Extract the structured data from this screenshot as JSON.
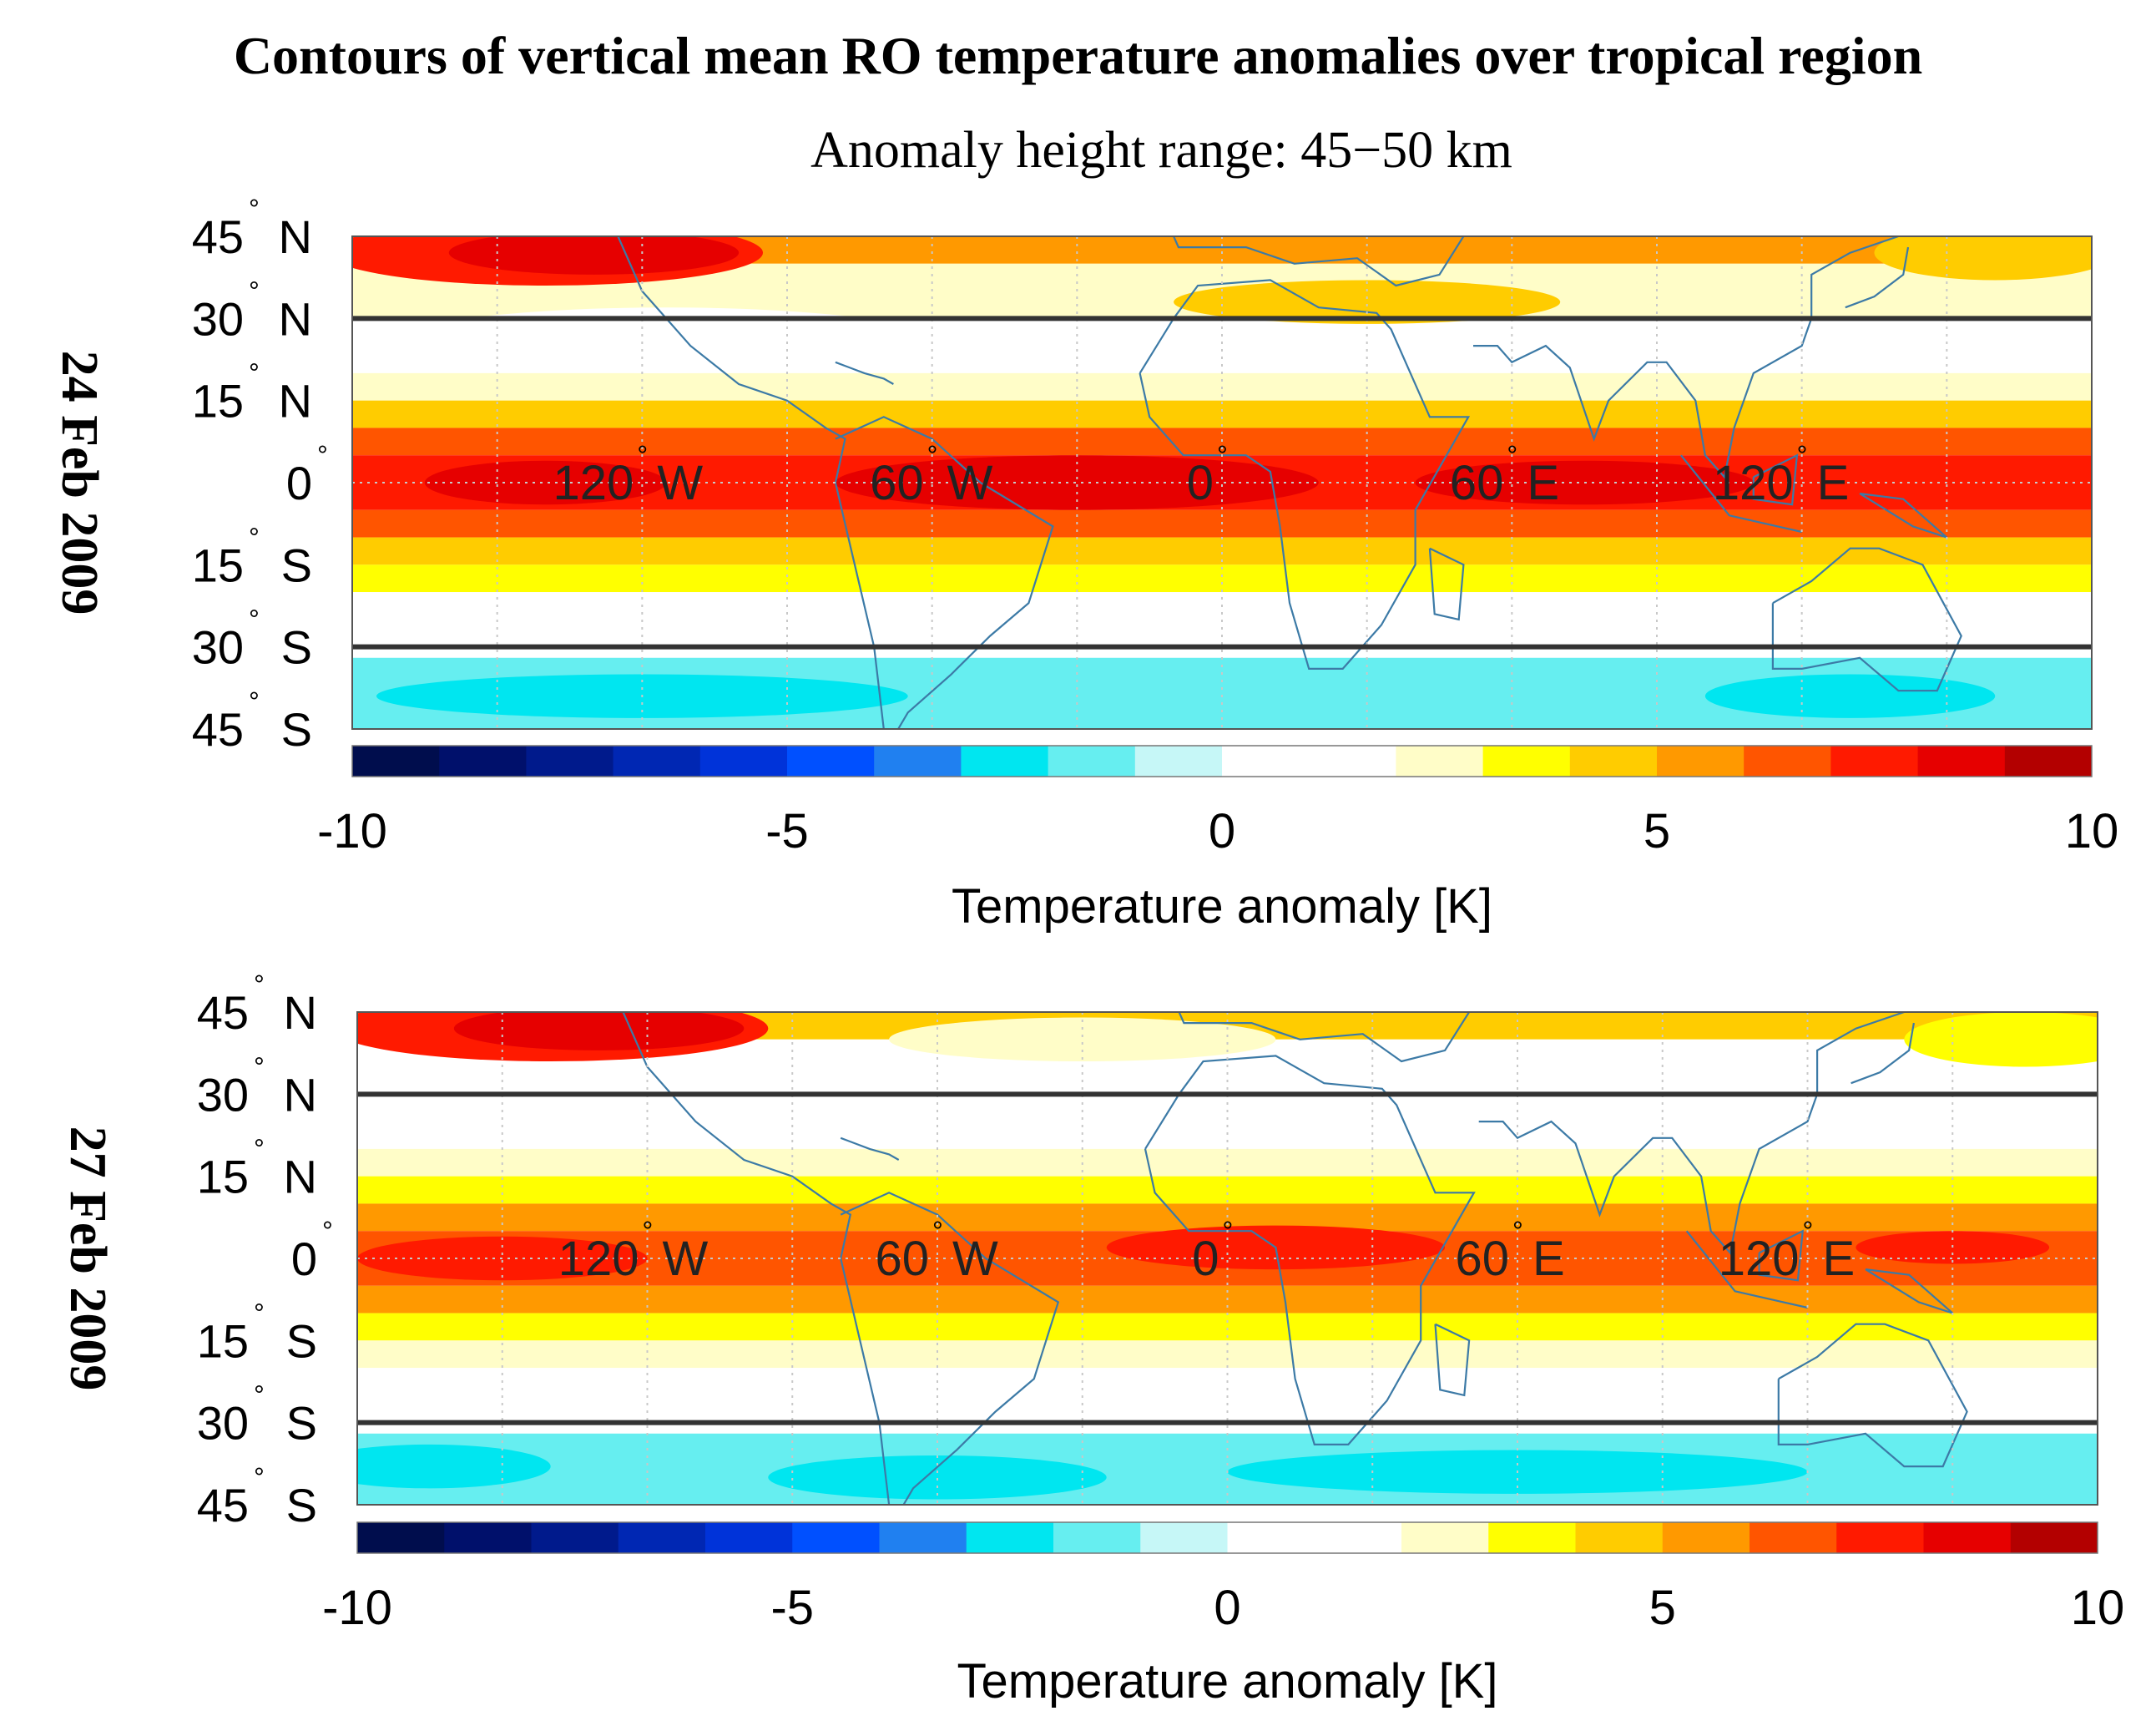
{
  "chart_data": [
    {
      "type": "heatmap",
      "panel": "24 Feb 2009",
      "title": "Contours of vertical mean RO temperature anomalies over tropical region",
      "subtitle": "Anomaly height range: 45−50 km",
      "date_label": "24 Feb 2009",
      "x_domain": [
        -180,
        180
      ],
      "y_domain": [
        -45,
        45
      ],
      "lat_labels": [
        "45",
        "30",
        "15",
        "0",
        "15",
        "30",
        "45"
      ],
      "lat_hemispheres": [
        "N",
        "N",
        "N",
        "",
        "S",
        "S",
        "S"
      ],
      "lon_labels": [
        {
          "lon": -120,
          "text": "120",
          "suffix": "W"
        },
        {
          "lon": -60,
          "text": "60",
          "suffix": "W"
        },
        {
          "lon": 0,
          "text": "0",
          "suffix": ""
        },
        {
          "lon": 60,
          "text": "60",
          "suffix": "E"
        },
        {
          "lon": 120,
          "text": "120",
          "suffix": "E"
        }
      ],
      "tropical_bounds_lat": [
        30,
        -30
      ],
      "colorbar": {
        "min": -10,
        "max": 10,
        "ticks": [
          "-10",
          "-5",
          "0",
          "5",
          "10"
        ],
        "label": "Temperature anomaly [K]"
      },
      "lat_bands": [
        {
          "lat": [
            45,
            40
          ],
          "value": 5.5
        },
        {
          "lat": [
            40,
            30
          ],
          "value": 2.5
        },
        {
          "lat": [
            30,
            20
          ],
          "value": 1.5
        },
        {
          "lat": [
            20,
            15
          ],
          "value": 2.5
        },
        {
          "lat": [
            15,
            10
          ],
          "value": 4.5
        },
        {
          "lat": [
            10,
            5
          ],
          "value": 6.5
        },
        {
          "lat": [
            5,
            -5
          ],
          "value": 7.5
        },
        {
          "lat": [
            -5,
            -10
          ],
          "value": 6.5
        },
        {
          "lat": [
            -10,
            -15
          ],
          "value": 4.5
        },
        {
          "lat": [
            -15,
            -20
          ],
          "value": 3.5
        },
        {
          "lat": [
            -20,
            -25
          ],
          "value": 1.5
        },
        {
          "lat": [
            -25,
            -32
          ],
          "value": 0.5
        },
        {
          "lat": [
            -32,
            -45
          ],
          "value": -1.5
        }
      ],
      "blobs": [
        {
          "lon": -140,
          "lat": 42,
          "dlon": 45,
          "dlat": 6,
          "value": 7.5
        },
        {
          "lon": -130,
          "lat": 42,
          "dlon": 30,
          "dlat": 4,
          "value": 8.5
        },
        {
          "lon": 160,
          "lat": 42,
          "dlon": 25,
          "dlat": 5,
          "value": 4.5
        },
        {
          "lon": -115,
          "lat": 26,
          "dlon": 55,
          "dlat": 6,
          "value": 0.5
        },
        {
          "lon": 30,
          "lat": 33,
          "dlon": 40,
          "dlat": 4,
          "value": 4.5
        },
        {
          "lon": -30,
          "lat": 0,
          "dlon": 50,
          "dlat": 5,
          "value": 8.5
        },
        {
          "lon": -140,
          "lat": 0,
          "dlon": 25,
          "dlat": 4,
          "value": 8.5
        },
        {
          "lon": 75,
          "lat": 0,
          "dlon": 35,
          "dlat": 4,
          "value": 8.5
        },
        {
          "lon": -120,
          "lat": -39,
          "dlon": 55,
          "dlat": 4,
          "value": -2.5
        },
        {
          "lon": 130,
          "lat": -39,
          "dlon": 30,
          "dlat": 4,
          "value": -2.5
        }
      ]
    },
    {
      "type": "heatmap",
      "panel": "27 Feb 2009",
      "title": "",
      "subtitle": "",
      "date_label": "27 Feb 2009",
      "x_domain": [
        -180,
        180
      ],
      "y_domain": [
        -45,
        45
      ],
      "lat_labels": [
        "45",
        "30",
        "15",
        "0",
        "15",
        "30",
        "45"
      ],
      "lat_hemispheres": [
        "N",
        "N",
        "N",
        "",
        "S",
        "S",
        "S"
      ],
      "lon_labels": [
        {
          "lon": -120,
          "text": "120",
          "suffix": "W"
        },
        {
          "lon": -60,
          "text": "60",
          "suffix": "W"
        },
        {
          "lon": 0,
          "text": "0",
          "suffix": ""
        },
        {
          "lon": 60,
          "text": "60",
          "suffix": "E"
        },
        {
          "lon": 120,
          "text": "120",
          "suffix": "E"
        }
      ],
      "tropical_bounds_lat": [
        30,
        -30
      ],
      "colorbar": {
        "min": -10,
        "max": 10,
        "ticks": [
          "-10",
          "-5",
          "0",
          "5",
          "10"
        ],
        "label": "Temperature anomaly [K]"
      },
      "lat_bands": [
        {
          "lat": [
            45,
            40
          ],
          "value": 4.5
        },
        {
          "lat": [
            40,
            30
          ],
          "value": 1.5
        },
        {
          "lat": [
            30,
            20
          ],
          "value": 1.5
        },
        {
          "lat": [
            20,
            15
          ],
          "value": 2.5
        },
        {
          "lat": [
            15,
            10
          ],
          "value": 3.5
        },
        {
          "lat": [
            10,
            5
          ],
          "value": 5.5
        },
        {
          "lat": [
            5,
            -5
          ],
          "value": 6.5
        },
        {
          "lat": [
            -5,
            -10
          ],
          "value": 5.5
        },
        {
          "lat": [
            -10,
            -15
          ],
          "value": 3.5
        },
        {
          "lat": [
            -15,
            -20
          ],
          "value": 2.5
        },
        {
          "lat": [
            -20,
            -25
          ],
          "value": 1.5
        },
        {
          "lat": [
            -25,
            -32
          ],
          "value": 0.5
        },
        {
          "lat": [
            -32,
            -45
          ],
          "value": -1.5
        }
      ],
      "blobs": [
        {
          "lon": -140,
          "lat": 42,
          "dlon": 45,
          "dlat": 6,
          "value": 7.5
        },
        {
          "lon": -130,
          "lat": 42,
          "dlon": 30,
          "dlat": 4,
          "value": 8.5
        },
        {
          "lon": 165,
          "lat": 40,
          "dlon": 25,
          "dlat": 5,
          "value": 3.5
        },
        {
          "lon": -30,
          "lat": 40,
          "dlon": 40,
          "dlat": 4,
          "value": 2.5
        },
        {
          "lon": -150,
          "lat": 0,
          "dlon": 30,
          "dlat": 4,
          "value": 7.5
        },
        {
          "lon": 10,
          "lat": 2,
          "dlon": 35,
          "dlat": 4,
          "value": 7.5
        },
        {
          "lon": 150,
          "lat": 2,
          "dlon": 20,
          "dlat": 3,
          "value": 7.5
        },
        {
          "lon": -165,
          "lat": -38,
          "dlon": 25,
          "dlat": 4,
          "value": -2.5
        },
        {
          "lon": -60,
          "lat": -40,
          "dlon": 35,
          "dlat": 4,
          "value": -2.5
        },
        {
          "lon": 60,
          "lat": -39,
          "dlon": 60,
          "dlat": 4,
          "value": -2.5
        }
      ]
    }
  ]
}
